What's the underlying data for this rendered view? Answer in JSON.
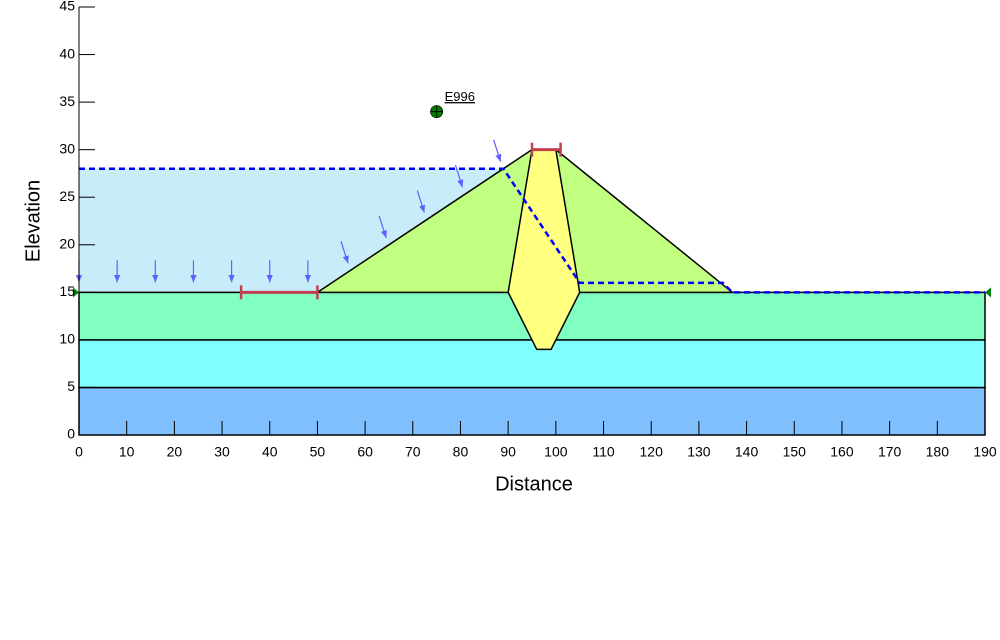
{
  "chart_data": {
    "type": "cross-section",
    "x_label": "Distance",
    "y_label": "Elevation",
    "xlim": [
      0,
      190
    ],
    "ylim": [
      0,
      45
    ],
    "xticks": [
      0,
      10,
      20,
      30,
      40,
      50,
      60,
      70,
      80,
      90,
      100,
      110,
      120,
      130,
      140,
      150,
      160,
      170,
      180,
      190
    ],
    "yticks": [
      0,
      5,
      10,
      15,
      20,
      25,
      30,
      35,
      40,
      45
    ],
    "water": {
      "color": "#c8ecfa",
      "points": [
        [
          0,
          15
        ],
        [
          0,
          28
        ],
        [
          89,
          28
        ],
        [
          50,
          15
        ]
      ]
    },
    "regions": [
      {
        "color": "#80c0ff",
        "points": [
          [
            0,
            0
          ],
          [
            190,
            0
          ],
          [
            190,
            5
          ],
          [
            0,
            5
          ]
        ]
      },
      {
        "color": "#80ffff",
        "points": [
          [
            0,
            5
          ],
          [
            190,
            5
          ],
          [
            190,
            10
          ],
          [
            0,
            10
          ]
        ]
      },
      {
        "color": "#80ffc0",
        "points": [
          [
            0,
            10
          ],
          [
            190,
            10
          ],
          [
            190,
            15
          ],
          [
            0,
            15
          ]
        ]
      },
      {
        "color": "#c0ff80",
        "points": [
          [
            50,
            15
          ],
          [
            95,
            30
          ],
          [
            100,
            30
          ],
          [
            137,
            15
          ]
        ]
      },
      {
        "color": "#ffff80",
        "points": [
          [
            95,
            30
          ],
          [
            100,
            30
          ],
          [
            105,
            15
          ],
          [
            99,
            9
          ],
          [
            96,
            9
          ],
          [
            90,
            15
          ]
        ]
      }
    ],
    "piezometric_line": {
      "color": "#0000ff",
      "points": [
        [
          0,
          28
        ],
        [
          89,
          28
        ],
        [
          105,
          16
        ],
        [
          135,
          16
        ],
        [
          137,
          15
        ],
        [
          190,
          15
        ]
      ]
    },
    "entry_range": {
      "color": "#c04050",
      "points": [
        [
          34,
          15
        ],
        [
          50,
          15
        ]
      ]
    },
    "exit_range": {
      "color": "#c04050",
      "points": [
        [
          95,
          30
        ],
        [
          101,
          30
        ]
      ]
    },
    "point": {
      "label": "E996",
      "color": "#008000",
      "x": 75,
      "y": 34
    }
  }
}
